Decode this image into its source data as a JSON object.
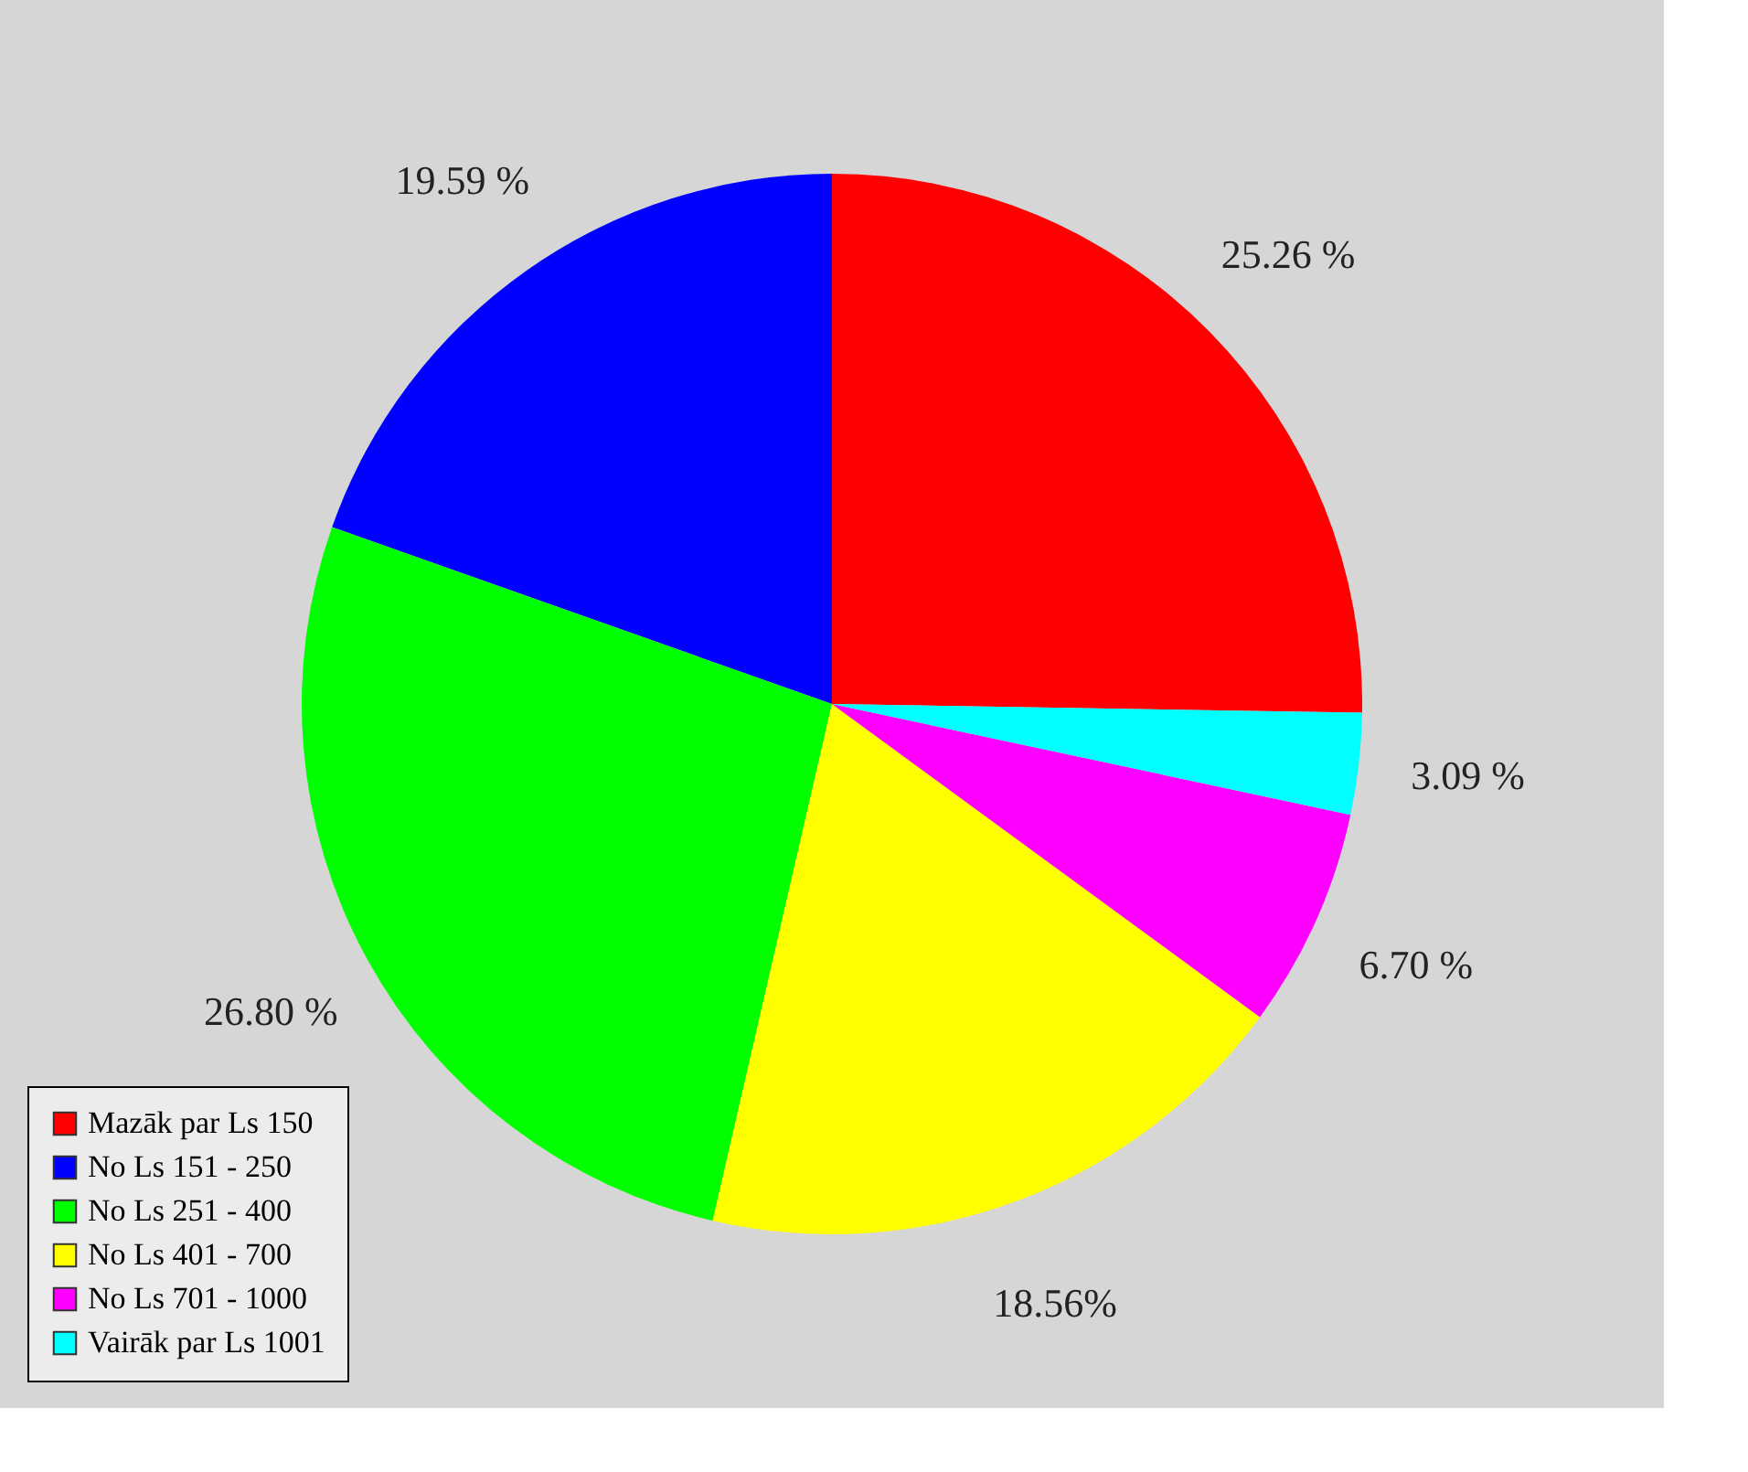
{
  "chart_data": {
    "type": "pie",
    "categories": [
      "Mazāk par Ls 150",
      "No Ls 151 - 250",
      "No Ls 251 - 400",
      "No Ls 401 - 700",
      "No Ls 701 - 1000",
      "Vairāk par Ls 1001"
    ],
    "values": [
      25.26,
      19.59,
      26.8,
      18.56,
      6.7,
      3.09
    ],
    "colors": [
      "#ff0000",
      "#0000ff",
      "#00ff00",
      "#ffff00",
      "#ff00ff",
      "#00ffff"
    ],
    "value_labels": [
      "25.26 %",
      "19.59  %",
      "26.80 %",
      "18.56%",
      "6.70 %",
      "3.09 %"
    ],
    "legend": "bottom left"
  }
}
